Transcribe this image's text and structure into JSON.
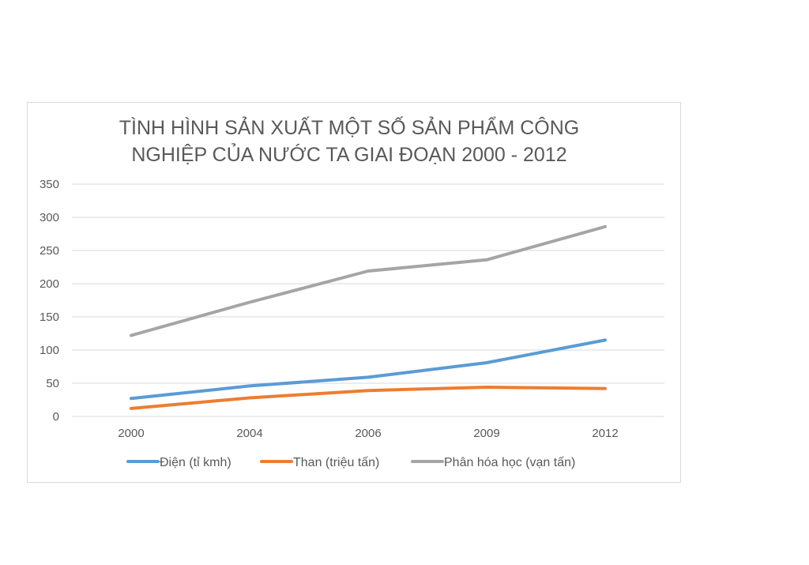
{
  "chart_data": {
    "type": "line",
    "title_lines": [
      "TÌNH HÌNH SẢN XUẤT MỘT SỐ SẢN PHẨM CÔNG",
      "NGHIỆP CỦA NƯỚC TA GIAI ĐOẠN 2000 - 2012"
    ],
    "categories": [
      "2000",
      "2004",
      "2006",
      "2009",
      "2012"
    ],
    "ylim": [
      0,
      350
    ],
    "yticks": [
      0,
      50,
      100,
      150,
      200,
      250,
      300,
      350
    ],
    "grid": true,
    "legend_position": "bottom",
    "series": [
      {
        "name": "Điện (tỉ kmh)",
        "color": "#5b9bd5",
        "values": [
          27,
          46,
          59,
          81,
          115
        ]
      },
      {
        "name": "Than (triệu tấn)",
        "color": "#ed7d31",
        "values": [
          12,
          28,
          39,
          44,
          42
        ]
      },
      {
        "name": "Phân hóa học (vạn tấn)",
        "color": "#a5a5a5",
        "values": [
          122,
          172,
          219,
          236,
          286
        ]
      }
    ]
  }
}
